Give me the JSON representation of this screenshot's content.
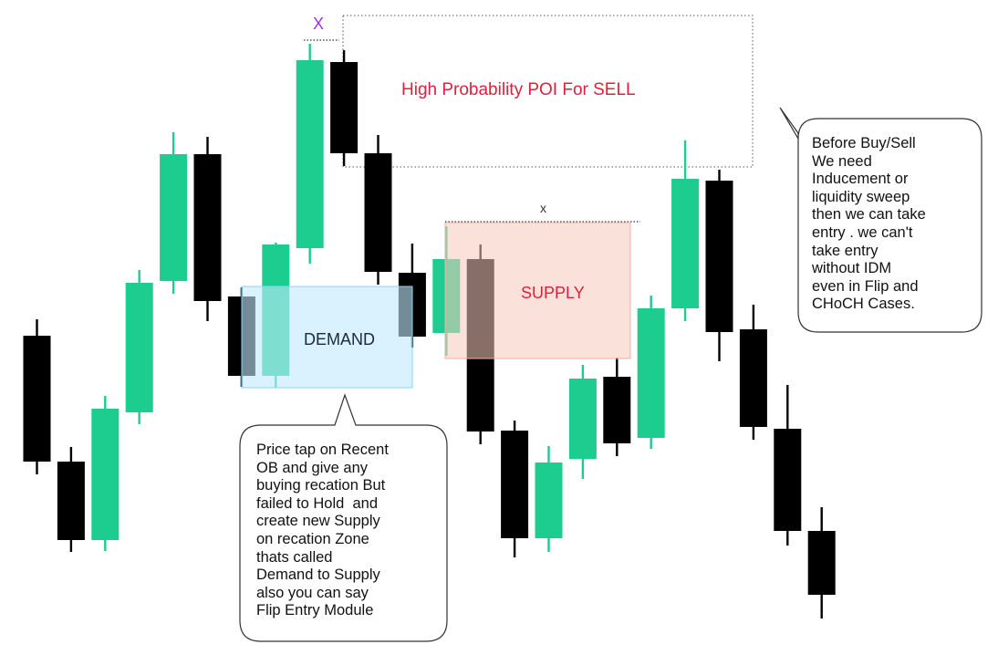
{
  "chart_data": {
    "type": "candlestick",
    "title": "",
    "xlabel": "",
    "ylabel": "",
    "axes_visible": false,
    "grid": false,
    "ylim": [
      0,
      718
    ],
    "y_note": "price in arbitrary units (higher = up)",
    "candles": [
      {
        "i": 1,
        "open": 212,
        "close": 350,
        "high": 368,
        "low": 198,
        "color": "black"
      },
      {
        "i": 2,
        "open": 126,
        "close": 212,
        "high": 228,
        "low": 113,
        "color": "black"
      },
      {
        "i": 3,
        "open": 126,
        "close": 270,
        "high": 284,
        "low": 114,
        "color": "green"
      },
      {
        "i": 4,
        "open": 266,
        "close": 408,
        "high": 422,
        "low": 253,
        "color": "green"
      },
      {
        "i": 5,
        "open": 410,
        "close": 549,
        "high": 573,
        "low": 396,
        "color": "green"
      },
      {
        "i": 6,
        "open": 388,
        "close": 549,
        "high": 568,
        "low": 366,
        "color": "black"
      },
      {
        "i": 7,
        "open": 306,
        "close": 393,
        "high": 403,
        "low": 294,
        "color": "black"
      },
      {
        "i": 8,
        "open": 306,
        "close": 450,
        "high": 452,
        "low": 293,
        "color": "green"
      },
      {
        "i": 9,
        "open": 446,
        "close": 652,
        "high": 670,
        "low": 429,
        "color": "green"
      },
      {
        "i": 10,
        "open": 550,
        "close": 650,
        "high": 663,
        "low": 536,
        "color": "black"
      },
      {
        "i": 11,
        "open": 420,
        "close": 550,
        "high": 570,
        "low": 406,
        "color": "black"
      },
      {
        "i": 12,
        "open": 349,
        "close": 419,
        "high": 451,
        "low": 337,
        "color": "black"
      },
      {
        "i": 13,
        "open": 353,
        "close": 434,
        "high": 470,
        "low": 328,
        "color": "green"
      },
      {
        "i": 14,
        "open": 245,
        "close": 434,
        "high": 450,
        "low": 231,
        "color": "black"
      },
      {
        "i": 15,
        "open": 128,
        "close": 246,
        "high": 257,
        "low": 107,
        "color": "black"
      },
      {
        "i": 16,
        "open": 128,
        "close": 211,
        "high": 229,
        "low": 113,
        "color": "green"
      },
      {
        "i": 17,
        "open": 215,
        "close": 303,
        "high": 318,
        "low": 193,
        "color": "green"
      },
      {
        "i": 18,
        "open": 232,
        "close": 305,
        "high": 326,
        "low": 218,
        "color": "black"
      },
      {
        "i": 19,
        "open": 238,
        "close": 380,
        "high": 394,
        "low": 226,
        "color": "green"
      },
      {
        "i": 20,
        "open": 380,
        "close": 522,
        "high": 564,
        "low": 366,
        "color": "green"
      },
      {
        "i": 21,
        "open": 354,
        "close": 520,
        "high": 532,
        "low": 322,
        "color": "black"
      },
      {
        "i": 22,
        "open": 250,
        "close": 357,
        "high": 384,
        "low": 236,
        "color": "black"
      },
      {
        "i": 23,
        "open": 136,
        "close": 248,
        "high": 296,
        "low": 120,
        "color": "black"
      },
      {
        "i": 24,
        "open": 66,
        "close": 136,
        "high": 162,
        "low": 40,
        "color": "black"
      }
    ],
    "zones": [
      {
        "name": "poi",
        "label": "High Probability POI For SELL",
        "color": "#e0203a"
      },
      {
        "name": "demand",
        "label": "DEMAND",
        "color": "#cfeefd"
      },
      {
        "name": "supply",
        "label": "SUPPLY",
        "color": "#fadcd2"
      }
    ],
    "marks": [
      "X",
      "x"
    ],
    "annotations": [
      "Before Buy/Sell\nWe need\nInducement or\nliquidity sweep\nthen we can take\nentry . we can't\ntake entry\nwithout IDM\neven in Flip and\nCHoCH Cases.",
      "Price tap on Recent\nOB and give any\nbuying recation But\nfailed to Hold  and\ncreate new Supply\non recation Zone\nthats called\nDemand to Supply\nalso you can say\nFlip Entry Module"
    ],
    "colors": {
      "bull": "#1dcc8f",
      "bear": "#000000"
    }
  }
}
